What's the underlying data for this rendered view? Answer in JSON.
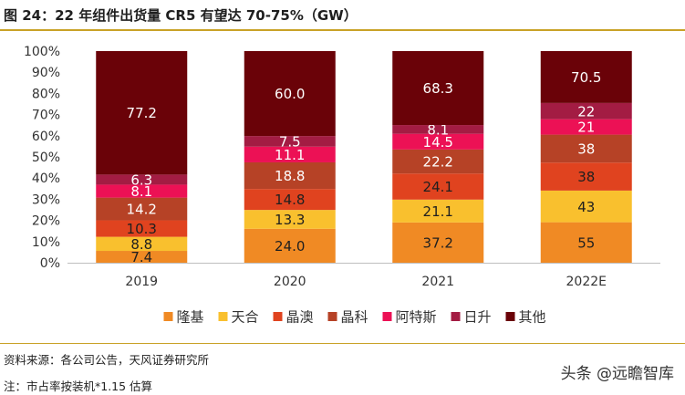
{
  "page": {
    "title": "图 24：22 年组件出货量 CR5 有望达 70-75%（GW）",
    "source": "资料来源：各公司公告，天风证券研究所",
    "note": "注：市占率按装机*1.15 估算",
    "watermark": "头条 @远瞻智库"
  },
  "chart_data": {
    "type": "bar",
    "stacked": true,
    "normalized": true,
    "title": "22 年组件出货量 CR5 有望达 70-75%（GW）",
    "categories": [
      "2019",
      "2020",
      "2021",
      "2022E"
    ],
    "ylim": [
      0,
      100
    ],
    "yticks": [
      "0%",
      "10%",
      "20%",
      "30%",
      "40%",
      "50%",
      "60%",
      "70%",
      "80%",
      "90%",
      "100%"
    ],
    "grid": false,
    "legend_position": "bottom",
    "series": [
      {
        "name": "隆基",
        "color": "#f08a24",
        "values": [
          7.4,
          24.0,
          37.2,
          55
        ],
        "labels": [
          "7.4",
          "24.0",
          "37.2",
          "55"
        ],
        "label_color": "#1f1f1f"
      },
      {
        "name": "天合",
        "color": "#f9c02e",
        "values": [
          8.8,
          13.3,
          21.1,
          43
        ],
        "labels": [
          "8.8",
          "13.3",
          "21.1",
          "43"
        ],
        "label_color": "#1f1f1f"
      },
      {
        "name": "晶澳",
        "color": "#e0431f",
        "values": [
          10.3,
          14.8,
          24.1,
          38
        ],
        "labels": [
          "10.3",
          "14.8",
          "24.1",
          "38"
        ],
        "label_color": "#1f1f1f"
      },
      {
        "name": "晶科",
        "color": "#b64226",
        "values": [
          14.2,
          18.8,
          22.2,
          38
        ],
        "labels": [
          "14.2",
          "18.8",
          "22.2",
          "38"
        ],
        "label_color": "#ffffff"
      },
      {
        "name": "阿特斯",
        "color": "#ec1155",
        "values": [
          8.1,
          11.1,
          14.5,
          21
        ],
        "labels": [
          "8.1",
          "11.1",
          "14.5",
          "21"
        ],
        "label_color": "#ffffff"
      },
      {
        "name": "日升",
        "color": "#a31c43",
        "values": [
          6.3,
          7.5,
          8.1,
          22
        ],
        "labels": [
          "6.3",
          "7.5",
          "8.1",
          "22"
        ],
        "label_color": "#ffffff"
      },
      {
        "name": "其他",
        "color": "#6a0208",
        "values": [
          77.2,
          60.0,
          68.3,
          70.5
        ],
        "labels": [
          "77.2",
          "60.0",
          "68.3",
          "70.5"
        ],
        "label_color": "#ffffff"
      }
    ]
  }
}
